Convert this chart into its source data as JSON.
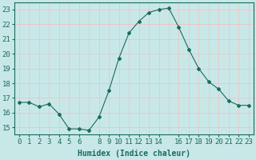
{
  "x": [
    0,
    1,
    2,
    3,
    4,
    5,
    6,
    7,
    8,
    9,
    10,
    11,
    12,
    13,
    14,
    15,
    16,
    17,
    18,
    19,
    20,
    21,
    22,
    23
  ],
  "y": [
    16.7,
    16.7,
    16.4,
    16.6,
    15.9,
    14.9,
    14.9,
    14.8,
    15.7,
    17.5,
    19.7,
    21.4,
    22.2,
    22.8,
    23.0,
    23.1,
    21.8,
    20.3,
    19.0,
    18.1,
    17.6,
    16.8,
    16.5,
    16.5
  ],
  "line_color": "#1a6b5a",
  "marker": "D",
  "markersize": 2.0,
  "linewidth": 0.8,
  "xlabel": "Humidex (Indice chaleur)",
  "xlim": [
    -0.5,
    23.5
  ],
  "ylim": [
    14.5,
    23.5
  ],
  "yticks": [
    15,
    16,
    17,
    18,
    19,
    20,
    21,
    22,
    23
  ],
  "xticks": [
    0,
    1,
    2,
    3,
    4,
    5,
    6,
    8,
    9,
    10,
    11,
    12,
    13,
    14,
    16,
    17,
    18,
    19,
    20,
    21,
    22,
    23
  ],
  "bg_color": "#c8e8e8",
  "grid_major_color": "#e8c8c8",
  "grid_minor_color": "#dcdcdc",
  "axis_color": "#1a6b5a",
  "xlabel_fontsize": 7,
  "tick_fontsize": 6.5,
  "tick_color": "#1a6b5a"
}
